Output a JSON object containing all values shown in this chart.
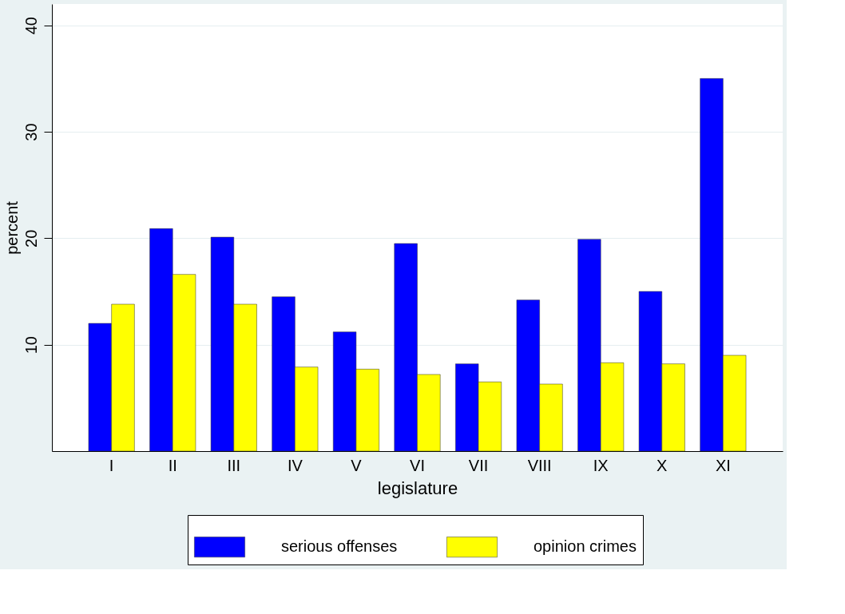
{
  "chart_data": {
    "type": "bar",
    "xlabel": "legislature",
    "ylabel": "percent",
    "categories": [
      "I",
      "II",
      "III",
      "IV",
      "V",
      "VI",
      "VII",
      "VIII",
      "IX",
      "X",
      "XI"
    ],
    "series": [
      {
        "name": "serious offenses",
        "color": "#0000ff",
        "values": [
          12.0,
          20.9,
          20.1,
          14.5,
          11.2,
          19.5,
          8.2,
          14.2,
          19.9,
          15.0,
          35.0
        ]
      },
      {
        "name": "opinion crimes",
        "color": "#ffff00",
        "values": [
          13.8,
          16.6,
          13.8,
          7.9,
          7.7,
          7.2,
          6.5,
          6.3,
          8.3,
          8.2,
          9.0
        ]
      }
    ],
    "ylim": [
      0,
      42
    ],
    "yticks": [
      10,
      20,
      30,
      40
    ],
    "grid": "y",
    "legend": "bottom"
  }
}
